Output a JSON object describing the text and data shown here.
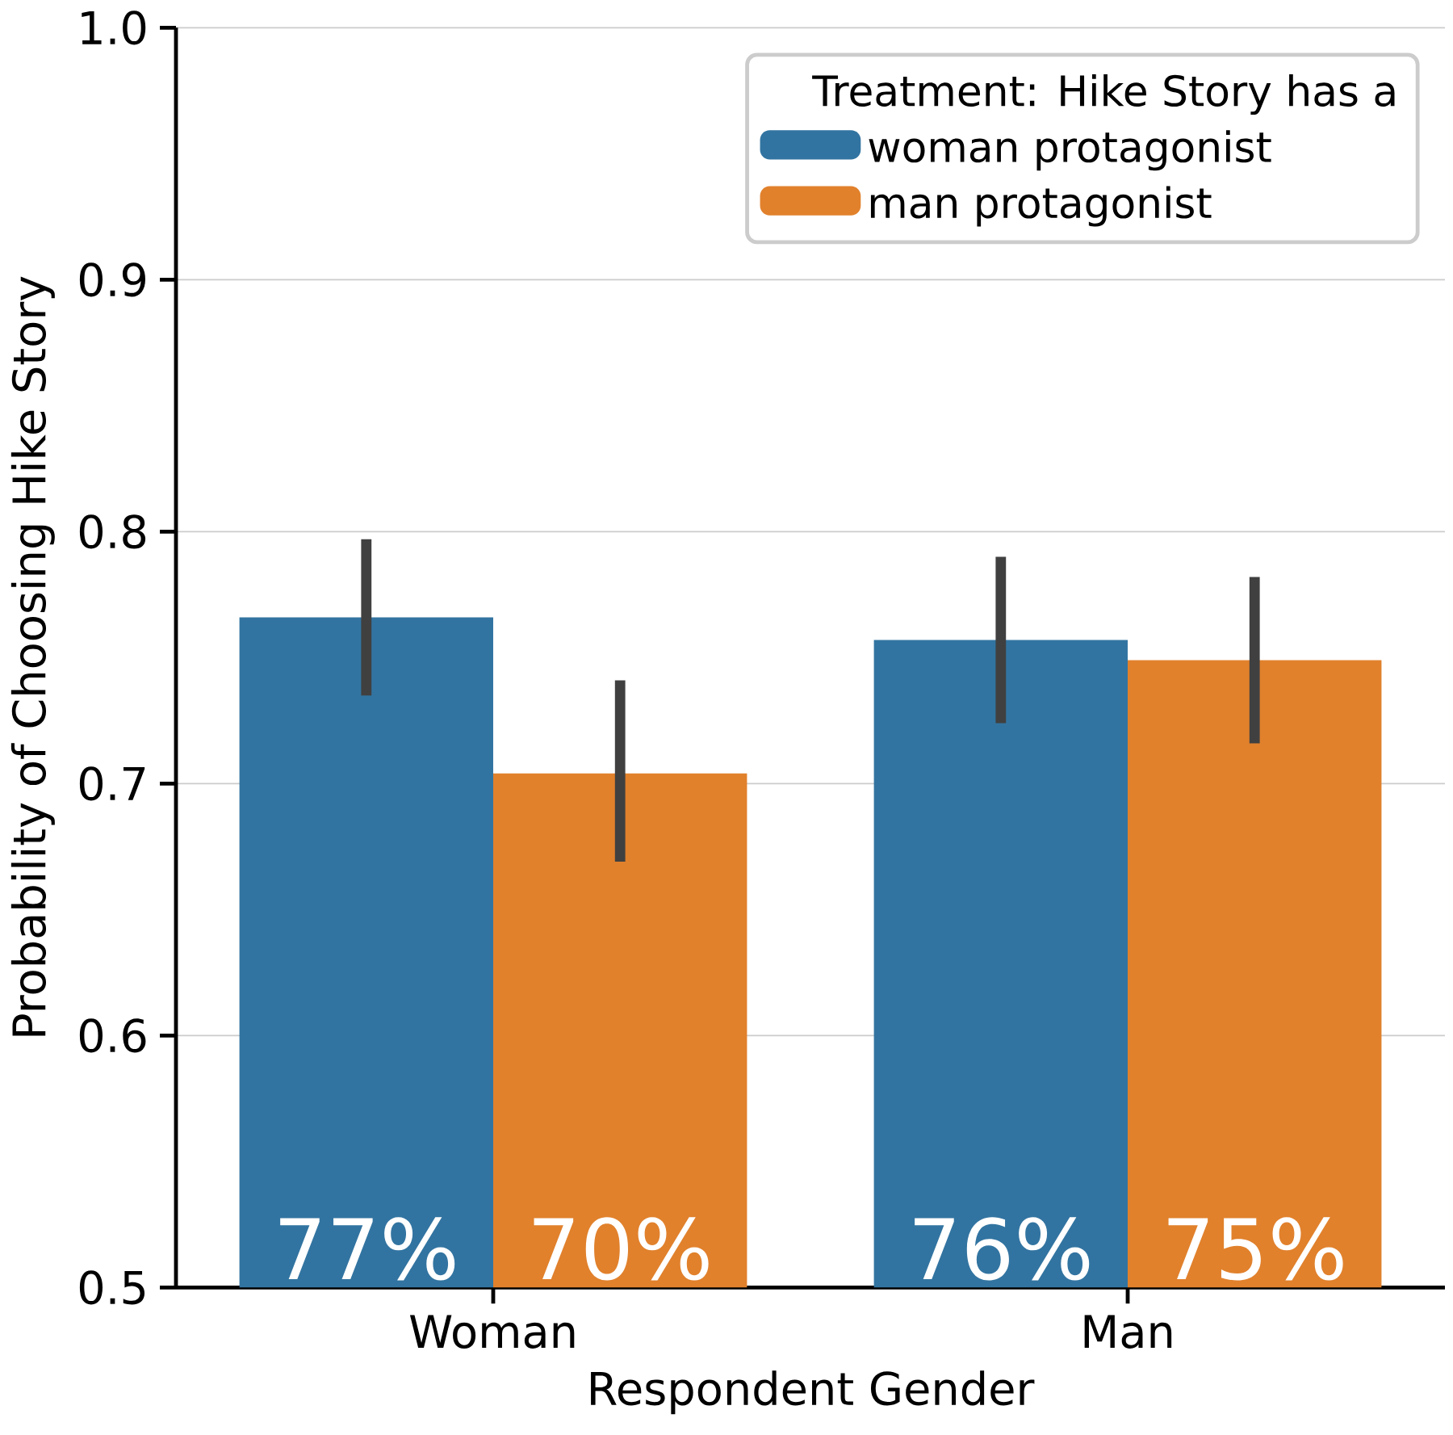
{
  "chart_data": {
    "type": "bar",
    "xlabel": "Respondent Gender",
    "ylabel": "Probability of Choosing Hike Story",
    "categories": [
      "Woman",
      "Man"
    ],
    "legend_title": "Treatment: Hike Story has a",
    "series": [
      {
        "name": "woman protagonist",
        "color": "#3274a1",
        "values": [
          0.766,
          0.757
        ],
        "errors": [
          [
            0.735,
            0.797
          ],
          [
            0.724,
            0.79
          ]
        ],
        "value_labels": [
          "77%",
          "76%"
        ]
      },
      {
        "name": "man protagonist",
        "color": "#e1812c",
        "values": [
          0.704,
          0.749
        ],
        "errors": [
          [
            0.669,
            0.741
          ],
          [
            0.716,
            0.782
          ]
        ],
        "value_labels": [
          "70%",
          "75%"
        ]
      }
    ],
    "ylim": [
      0.5,
      1.0
    ],
    "yticks": [
      0.5,
      0.6,
      0.7,
      0.8,
      0.9,
      {
        "value": 1.0,
        "label": "1.0"
      }
    ],
    "grid": "y",
    "legend": "top right"
  }
}
